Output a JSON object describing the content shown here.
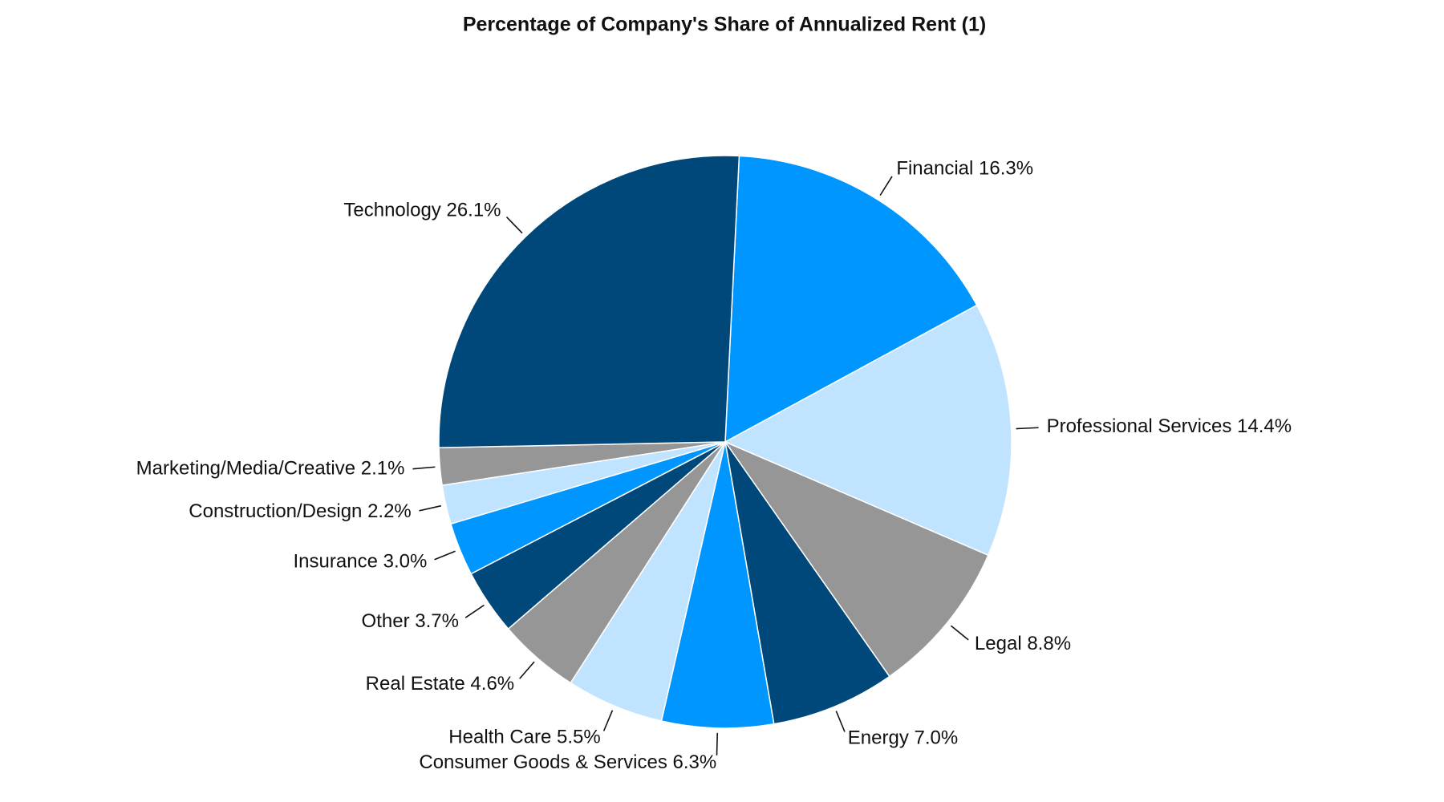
{
  "chart_data": {
    "type": "pie",
    "title": "Percentage of Company's Share of Annualized Rent (1)",
    "categories": [
      "Financial",
      "Professional Services",
      "Legal",
      "Energy",
      "Consumer Goods & Services",
      "Health Care",
      "Real Estate",
      "Other",
      "Insurance",
      "Construction/Design",
      "Marketing/Media/Creative",
      "Technology"
    ],
    "values": [
      16.3,
      14.4,
      8.8,
      7.0,
      6.3,
      5.5,
      4.6,
      3.7,
      3.0,
      2.2,
      2.1,
      26.1
    ],
    "value_labels": [
      "16.3%",
      "14.4%",
      "8.8%",
      "7.0%",
      "6.3%",
      "5.5%",
      "4.6%",
      "3.7%",
      "3.0%",
      "2.2%",
      "2.1%",
      "26.1%"
    ],
    "colors": [
      "#0096ff",
      "#c0e4ff",
      "#969696",
      "#00487a",
      "#0096ff",
      "#c0e4ff",
      "#969696",
      "#00487a",
      "#0096ff",
      "#c0e4ff",
      "#969696",
      "#00487a"
    ]
  }
}
